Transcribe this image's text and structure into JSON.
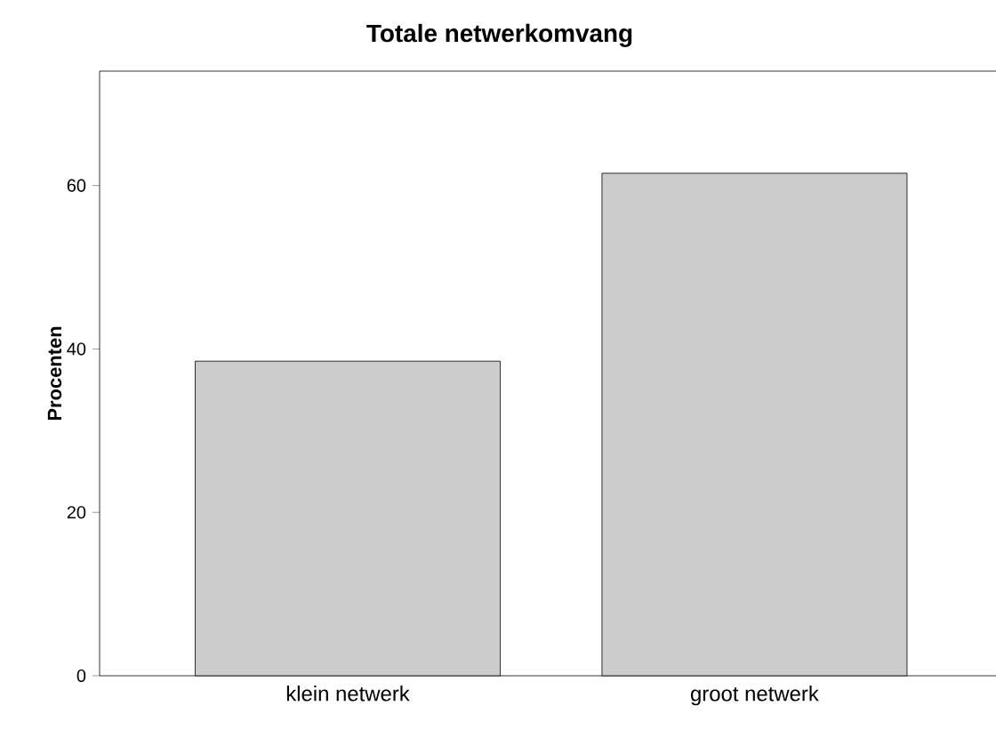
{
  "chart_data": {
    "type": "bar",
    "title": "Totale netwerkomvang",
    "ylabel": "Procenten",
    "categories": [
      "klein netwerk",
      "groot netwerk"
    ],
    "values": [
      38.5,
      61.5
    ],
    "color": "#cccccc",
    "ylim": [
      0,
      74
    ],
    "yticks": [
      0,
      20,
      40,
      60
    ]
  }
}
